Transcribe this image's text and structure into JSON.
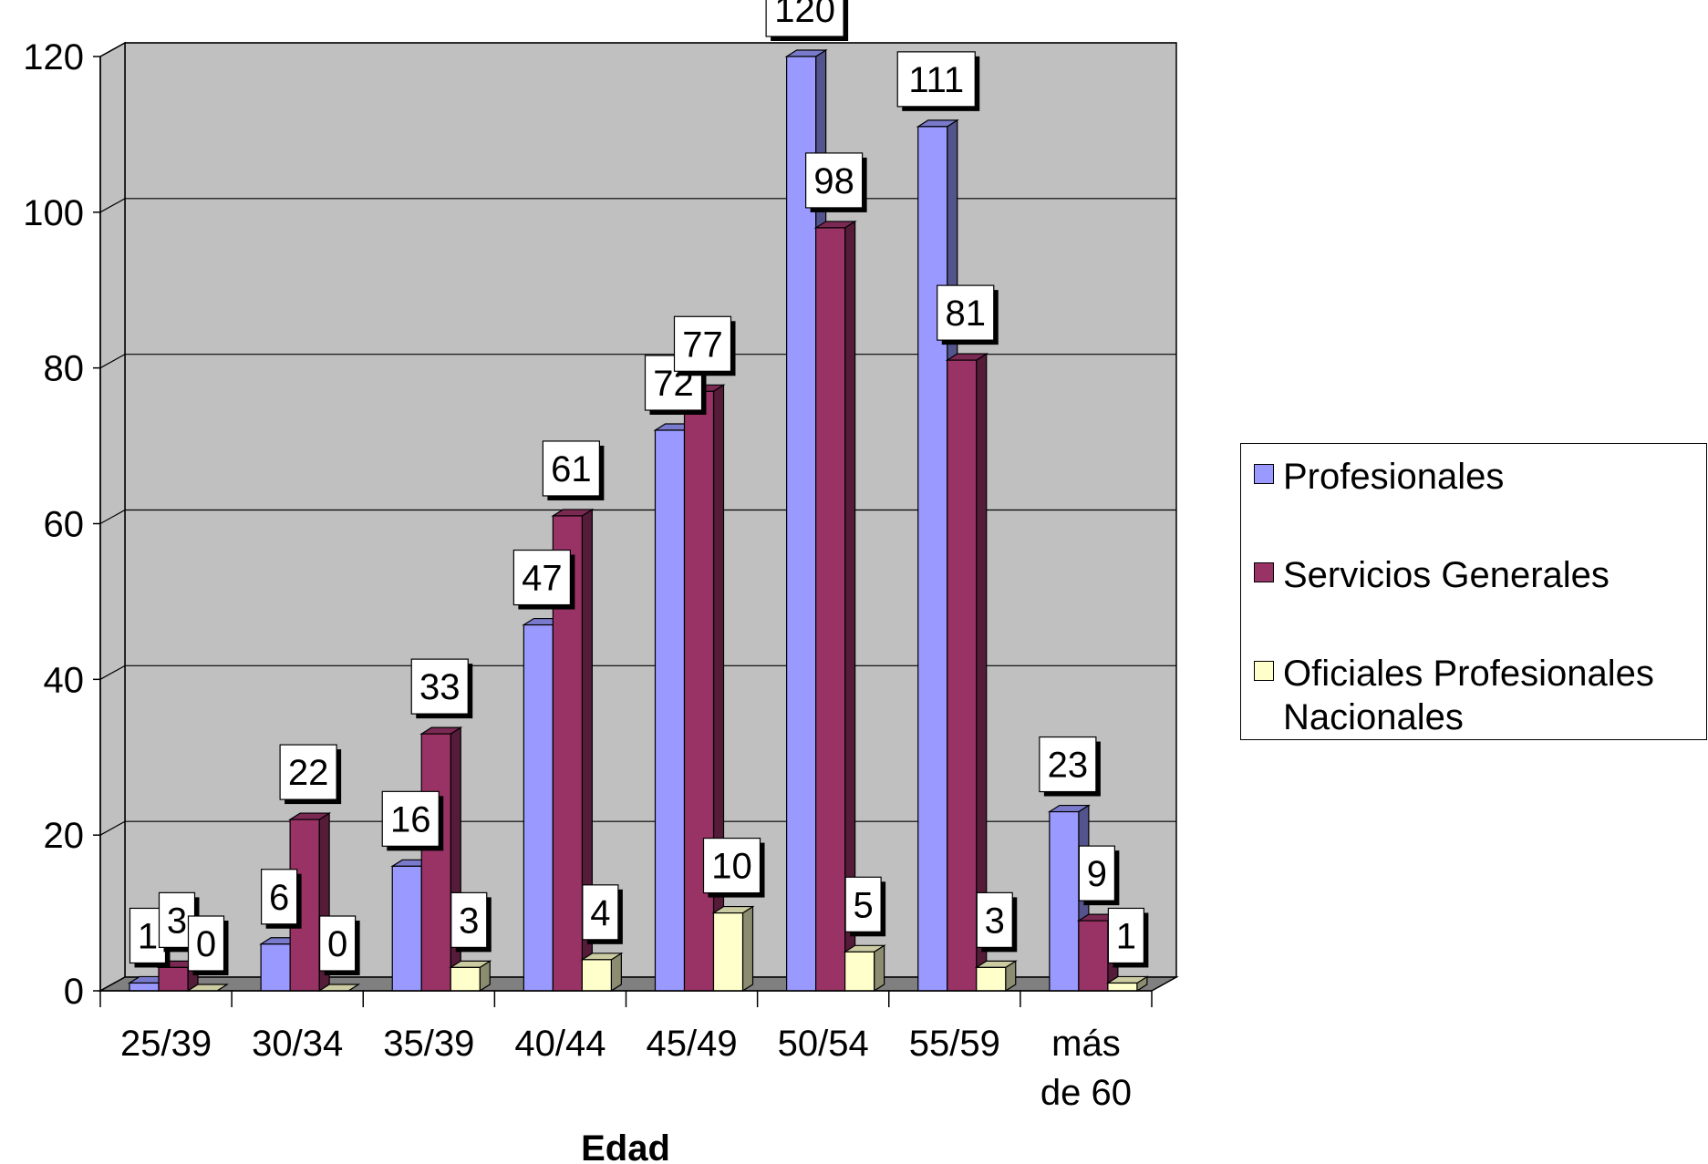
{
  "chart_data": {
    "type": "bar",
    "title": "",
    "xlabel": "Edad",
    "ylabel": "",
    "ylim": [
      0,
      120
    ],
    "yticks": [
      "0",
      "20",
      "40",
      "60",
      "80",
      "100",
      "120"
    ],
    "grid": true,
    "legend_position": "right",
    "categories": [
      "25/39",
      "30/34",
      "35/39",
      "40/44",
      "45/49",
      "50/54",
      "55/59",
      "más de 60"
    ],
    "series": [
      {
        "name": "Profesionales",
        "color": "#9999ff",
        "values": [
          1,
          6,
          16,
          47,
          72,
          120,
          111,
          23
        ]
      },
      {
        "name": "Servicios Generales",
        "color": "#993366",
        "values": [
          3,
          22,
          33,
          61,
          77,
          98,
          81,
          9
        ]
      },
      {
        "name": "Oficiales Profesionales Nacionales",
        "color": "#ffffcc",
        "values": [
          0,
          0,
          3,
          4,
          10,
          5,
          3,
          1
        ]
      }
    ]
  }
}
